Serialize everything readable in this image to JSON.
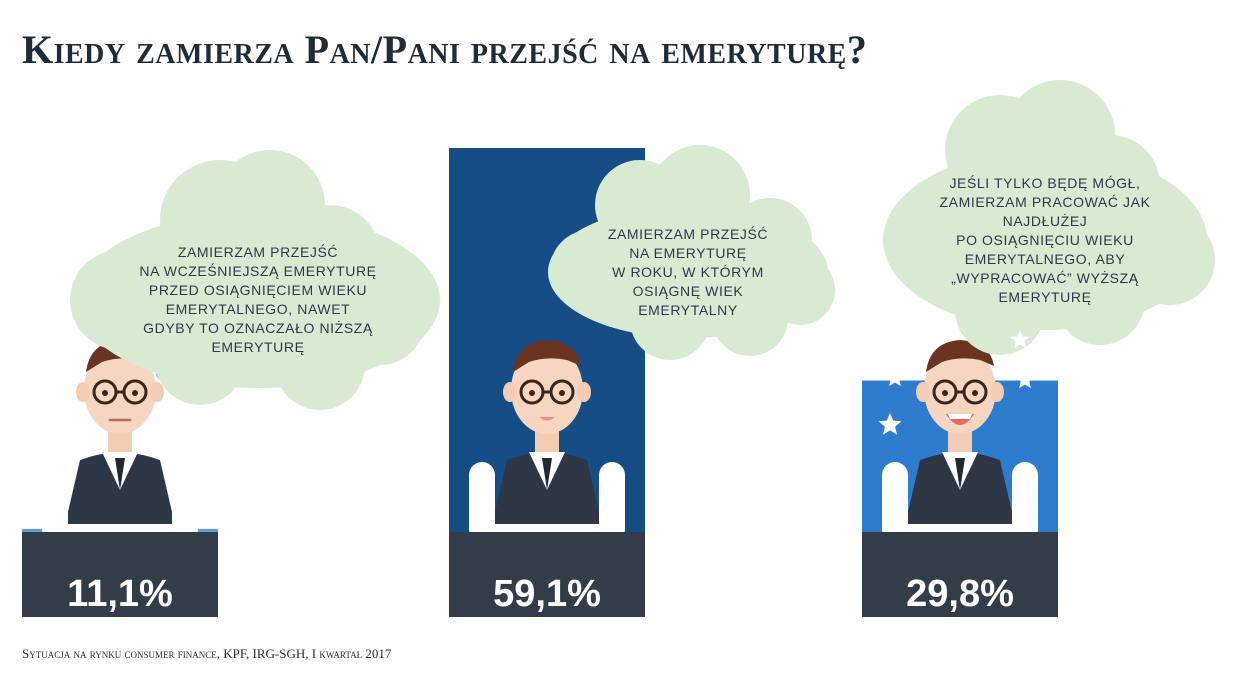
{
  "title": "Kiedy zamierza Pan/Pani przejść na emeryturę?",
  "source": "Sytuacja na rynku consumer finance, KPF, IRG-SGH, I kwartał 2017",
  "colors": {
    "bar_1": "#5b9ee6",
    "bar_2": "#154e85",
    "bar_3": "#2e7ccd",
    "desk": "#333d4a",
    "bubble": "#d9ead3",
    "text_dark": "#1d2b3a"
  },
  "chart_data": {
    "type": "bar",
    "categories": [
      "Zamierzam przejść na wcześniejszą emeryturę przed osiągnięciem wieku emerytalnego, nawet gdyby to oznaczało niższą emeryturę",
      "Zamierzam przejść na emeryturę w roku, w którym osiągnę wiek emerytalny",
      "Jeśli tylko będę mógł, zamierzam pracować jak najdłużej po osiągnięciu wieku emerytalnego, aby „wypracować” wyższą emeryturę"
    ],
    "values": [
      11.1,
      59.1,
      29.8
    ],
    "value_labels": [
      "11,1%",
      "59,1%",
      "29,8%"
    ],
    "ylim": [
      0,
      100
    ],
    "bubble_lines": [
      [
        "zamierzam przejść",
        "na wcześniejszą emeryturę",
        "przed osiągnięciem wieku",
        "emerytalnego, nawet",
        "gdyby to oznaczało niższą",
        "emeryturę"
      ],
      [
        "zamierzam przejść",
        "na emeryturę",
        "w roku, w którym",
        "osiągnę wiek",
        "emerytalny"
      ],
      [
        "jeśli tylko będę mógł,",
        "zamierzam pracować jak",
        "najdłużej",
        "po osiągnięciu wieku",
        "emerytalnego, aby",
        "„wypracować” wyższą",
        "emeryturę"
      ]
    ]
  }
}
